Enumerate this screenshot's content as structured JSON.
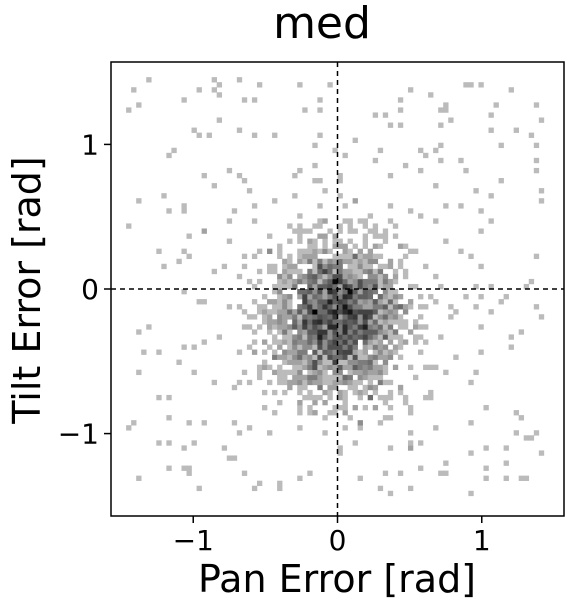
{
  "chart_data": {
    "type": "heatmap",
    "title": "med",
    "xlabel": "Pan Error [rad]",
    "ylabel": "Tilt Error [rad]",
    "xlim": [
      -1.57,
      1.57
    ],
    "ylim": [
      -1.57,
      1.57
    ],
    "x_ticks": [
      {
        "value": -1,
        "label": "−1"
      },
      {
        "value": 0,
        "label": "0"
      },
      {
        "value": 1,
        "label": "1"
      }
    ],
    "y_ticks": [
      {
        "value": -1,
        "label": "−1"
      },
      {
        "value": 0,
        "label": "0"
      },
      {
        "value": 1,
        "label": "1"
      }
    ],
    "reference_lines": {
      "x": 0,
      "y": 0,
      "style": "dashed"
    },
    "colormap": "greys",
    "grid": false,
    "distribution": {
      "center": [
        0.0,
        -0.2
      ],
      "spread": [
        0.22,
        0.25
      ],
      "sample_count": 2600
    }
  }
}
